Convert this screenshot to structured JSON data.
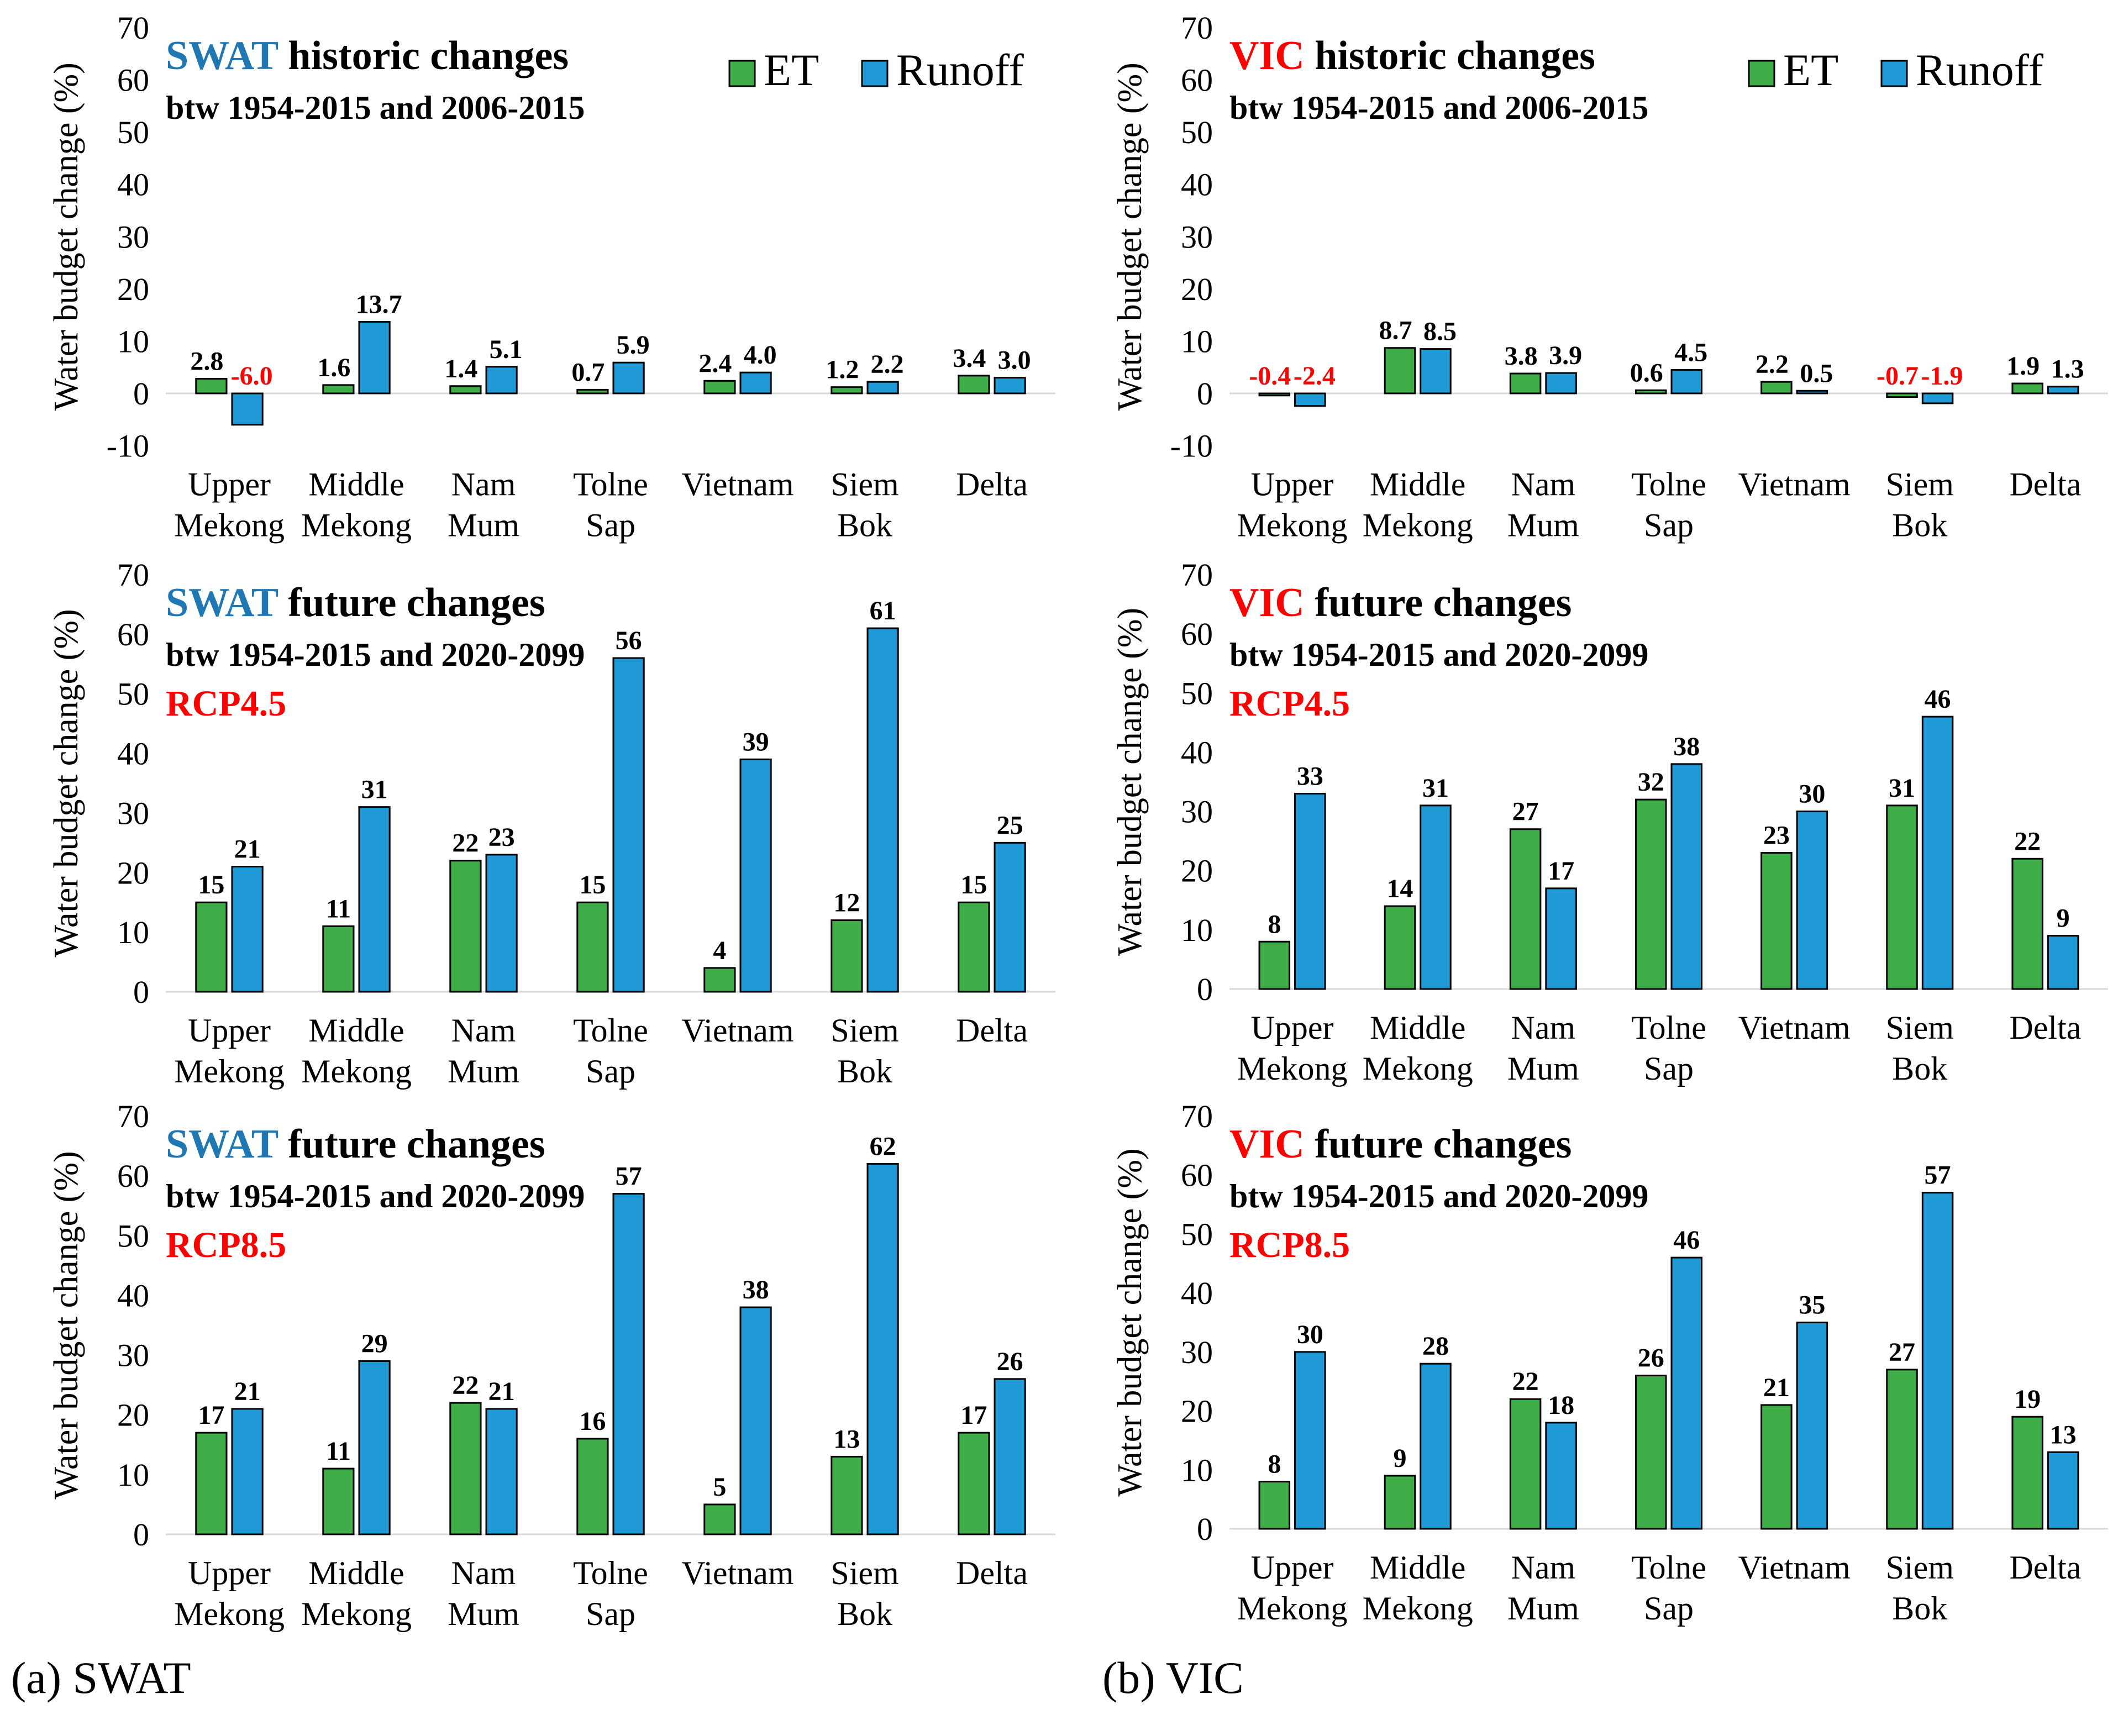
{
  "legend": {
    "et": "ET",
    "runoff": "Runoff"
  },
  "colors": {
    "et": "#3fae49",
    "runoff": "#1f9ad6",
    "swat": "#1f78b4",
    "vic": "#ff0000",
    "negative": "#ff0000",
    "rcp": "#ff0000",
    "text": "#000000"
  },
  "captions": {
    "swat": "(a) SWAT",
    "vic": "(b) VIC"
  },
  "chart_data": [
    {
      "id": "swat-historic",
      "type": "bar",
      "title_model": "SWAT",
      "title_rest": " historic changes",
      "subtitle": "btw 1954-2015 and 2006-2015",
      "scenario": "",
      "ylabel": "Water budget change (%)",
      "ylim": [
        -10,
        70
      ],
      "yticks": [
        -10,
        0,
        10,
        20,
        30,
        40,
        50,
        60,
        70
      ],
      "categories": [
        [
          "Upper",
          "Mekong"
        ],
        [
          "Middle",
          "Mekong"
        ],
        [
          "Nam",
          "Mum"
        ],
        [
          "Tolne",
          "Sap"
        ],
        [
          "Vietnam"
        ],
        [
          "Siem",
          "Bok"
        ],
        [
          "Delta"
        ]
      ],
      "series": [
        {
          "name": "ET",
          "values": [
            2.8,
            1.6,
            1.4,
            0.7,
            2.4,
            1.2,
            3.4
          ],
          "labels": [
            "2.8",
            "1.6",
            "1.4",
            "0.7",
            "2.4",
            "1.2",
            "3.4"
          ]
        },
        {
          "name": "Runoff",
          "values": [
            -6.0,
            13.7,
            5.1,
            5.9,
            4.0,
            2.2,
            3.0
          ],
          "labels": [
            "-6.0",
            "13.7",
            "5.1",
            "5.9",
            "4.0",
            "2.2",
            "3.0"
          ]
        }
      ],
      "legend": true
    },
    {
      "id": "vic-historic",
      "type": "bar",
      "title_model": "VIC",
      "title_rest": " historic changes",
      "subtitle": "btw 1954-2015 and 2006-2015",
      "scenario": "",
      "ylabel": "Water budget change (%)",
      "ylim": [
        -10,
        70
      ],
      "yticks": [
        -10,
        0,
        10,
        20,
        30,
        40,
        50,
        60,
        70
      ],
      "categories": [
        [
          "Upper",
          "Mekong"
        ],
        [
          "Middle",
          "Mekong"
        ],
        [
          "Nam",
          "Mum"
        ],
        [
          "Tolne",
          "Sap"
        ],
        [
          "Vietnam"
        ],
        [
          "Siem",
          "Bok"
        ],
        [
          "Delta"
        ]
      ],
      "series": [
        {
          "name": "ET",
          "values": [
            -0.4,
            8.7,
            3.8,
            0.6,
            2.2,
            -0.7,
            1.9
          ],
          "labels": [
            "-0.4",
            "8.7",
            "3.8",
            "0.6",
            "2.2",
            "-0.7",
            "1.9"
          ]
        },
        {
          "name": "Runoff",
          "values": [
            -2.4,
            8.5,
            3.9,
            4.5,
            0.5,
            -1.9,
            1.3
          ],
          "labels": [
            "-2.4",
            "8.5",
            "3.9",
            "4.5",
            "0.5",
            "-1.9",
            "1.3"
          ]
        }
      ],
      "legend": true
    },
    {
      "id": "swat-rcp45",
      "type": "bar",
      "title_model": "SWAT",
      "title_rest": " future changes",
      "subtitle": "btw 1954-2015 and 2020-2099",
      "scenario": "RCP4.5",
      "ylabel": "Water budget change (%)",
      "ylim": [
        0,
        70
      ],
      "yticks": [
        0,
        10,
        20,
        30,
        40,
        50,
        60,
        70
      ],
      "categories": [
        [
          "Upper",
          "Mekong"
        ],
        [
          "Middle",
          "Mekong"
        ],
        [
          "Nam",
          "Mum"
        ],
        [
          "Tolne",
          "Sap"
        ],
        [
          "Vietnam"
        ],
        [
          "Siem",
          "Bok"
        ],
        [
          "Delta"
        ]
      ],
      "series": [
        {
          "name": "ET",
          "values": [
            15,
            11,
            22,
            15,
            4,
            12,
            15
          ],
          "labels": [
            "15",
            "11",
            "22",
            "15",
            "4",
            "12",
            "15"
          ]
        },
        {
          "name": "Runoff",
          "values": [
            21,
            31,
            23,
            56,
            39,
            61,
            25
          ],
          "labels": [
            "21",
            "31",
            "23",
            "56",
            "39",
            "61",
            "25"
          ]
        }
      ],
      "legend": false
    },
    {
      "id": "vic-rcp45",
      "type": "bar",
      "title_model": "VIC",
      "title_rest": " future changes",
      "subtitle": "btw 1954-2015 and 2020-2099",
      "scenario": "RCP4.5",
      "ylabel": "Water budget change (%)",
      "ylim": [
        0,
        70
      ],
      "yticks": [
        0,
        10,
        20,
        30,
        40,
        50,
        60,
        70
      ],
      "categories": [
        [
          "Upper",
          "Mekong"
        ],
        [
          "Middle",
          "Mekong"
        ],
        [
          "Nam",
          "Mum"
        ],
        [
          "Tolne",
          "Sap"
        ],
        [
          "Vietnam"
        ],
        [
          "Siem",
          "Bok"
        ],
        [
          "Delta"
        ]
      ],
      "series": [
        {
          "name": "ET",
          "values": [
            8,
            14,
            27,
            32,
            23,
            31,
            22
          ],
          "labels": [
            "8",
            "14",
            "27",
            "32",
            "23",
            "31",
            "22"
          ]
        },
        {
          "name": "Runoff",
          "values": [
            33,
            31,
            17,
            38,
            30,
            46,
            9
          ],
          "labels": [
            "33",
            "31",
            "17",
            "38",
            "30",
            "46",
            "9"
          ]
        }
      ],
      "legend": false
    },
    {
      "id": "swat-rcp85",
      "type": "bar",
      "title_model": "SWAT",
      "title_rest": " future changes",
      "subtitle": "btw 1954-2015 and 2020-2099",
      "scenario": "RCP8.5",
      "ylabel": "Water budget change (%)",
      "ylim": [
        0,
        70
      ],
      "yticks": [
        0,
        10,
        20,
        30,
        40,
        50,
        60,
        70
      ],
      "categories": [
        [
          "Upper",
          "Mekong"
        ],
        [
          "Middle",
          "Mekong"
        ],
        [
          "Nam",
          "Mum"
        ],
        [
          "Tolne",
          "Sap"
        ],
        [
          "Vietnam"
        ],
        [
          "Siem",
          "Bok"
        ],
        [
          "Delta"
        ]
      ],
      "series": [
        {
          "name": "ET",
          "values": [
            17,
            11,
            22,
            16,
            5,
            13,
            17
          ],
          "labels": [
            "17",
            "11",
            "22",
            "16",
            "5",
            "13",
            "17"
          ]
        },
        {
          "name": "Runoff",
          "values": [
            21,
            29,
            21,
            57,
            38,
            62,
            26
          ],
          "labels": [
            "21",
            "29",
            "21",
            "57",
            "38",
            "62",
            "26"
          ]
        }
      ],
      "legend": false
    },
    {
      "id": "vic-rcp85",
      "type": "bar",
      "title_model": "VIC",
      "title_rest": " future changes",
      "subtitle": "btw 1954-2015 and 2020-2099",
      "scenario": "RCP8.5",
      "ylabel": "Water budget change (%)",
      "ylim": [
        0,
        70
      ],
      "yticks": [
        0,
        10,
        20,
        30,
        40,
        50,
        60,
        70
      ],
      "categories": [
        [
          "Upper",
          "Mekong"
        ],
        [
          "Middle",
          "Mekong"
        ],
        [
          "Nam",
          "Mum"
        ],
        [
          "Tolne",
          "Sap"
        ],
        [
          "Vietnam"
        ],
        [
          "Siem",
          "Bok"
        ],
        [
          "Delta"
        ]
      ],
      "series": [
        {
          "name": "ET",
          "values": [
            8,
            9,
            22,
            26,
            21,
            27,
            19
          ],
          "labels": [
            "8",
            "9",
            "22",
            "26",
            "21",
            "27",
            "19"
          ]
        },
        {
          "name": "Runoff",
          "values": [
            30,
            28,
            18,
            46,
            35,
            57,
            13
          ],
          "labels": [
            "30",
            "28",
            "18",
            "46",
            "35",
            "57",
            "13"
          ]
        }
      ],
      "legend": false
    }
  ]
}
